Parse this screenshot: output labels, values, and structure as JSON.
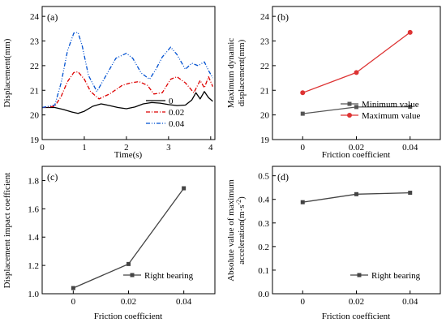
{
  "chart_data": [
    {
      "id": "a",
      "type": "line",
      "panel_label": "(a)",
      "xlabel": "Time(s)",
      "ylabel": "Displacement(mm)",
      "xlim": [
        0,
        4.1
      ],
      "ylim": [
        19,
        24.4
      ],
      "xticks": [
        0,
        1,
        2,
        3,
        4
      ],
      "yticks": [
        19,
        20,
        21,
        22,
        23,
        24
      ],
      "legend_position": "lower-right",
      "series": [
        {
          "name": "0",
          "color": "#000000",
          "dash": "solid",
          "x": [
            0,
            0.3,
            0.5,
            0.7,
            0.85,
            1.0,
            1.2,
            1.4,
            1.6,
            1.8,
            2.0,
            2.2,
            2.4,
            2.6,
            2.8,
            3.0,
            3.2,
            3.4,
            3.55,
            3.65,
            3.75,
            3.85,
            3.95,
            4.05
          ],
          "y": [
            20.3,
            20.3,
            20.22,
            20.12,
            20.06,
            20.15,
            20.35,
            20.45,
            20.38,
            20.3,
            20.25,
            20.32,
            20.45,
            20.5,
            20.48,
            20.42,
            20.38,
            20.4,
            20.6,
            20.9,
            20.65,
            20.95,
            20.7,
            20.55
          ]
        },
        {
          "name": "0.02",
          "color": "#dd0000",
          "dash": "dashdot",
          "x": [
            0,
            0.3,
            0.45,
            0.6,
            0.75,
            0.85,
            1.0,
            1.15,
            1.35,
            1.6,
            1.9,
            2.1,
            2.3,
            2.5,
            2.65,
            2.85,
            3.05,
            3.2,
            3.4,
            3.6,
            3.75,
            3.85,
            3.95,
            4.05
          ],
          "y": [
            20.3,
            20.35,
            20.75,
            21.35,
            21.72,
            21.75,
            21.45,
            20.95,
            20.65,
            20.85,
            21.2,
            21.3,
            21.35,
            21.2,
            20.85,
            20.9,
            21.45,
            21.55,
            21.3,
            20.9,
            21.4,
            21.1,
            21.55,
            21.15
          ]
        },
        {
          "name": "0.04",
          "color": "#0050d0",
          "dash": "dashdotdot",
          "x": [
            0,
            0.3,
            0.45,
            0.6,
            0.75,
            0.85,
            0.95,
            1.1,
            1.3,
            1.5,
            1.75,
            2.0,
            2.15,
            2.35,
            2.55,
            2.7,
            2.85,
            3.05,
            3.2,
            3.4,
            3.55,
            3.7,
            3.85,
            3.95,
            4.05
          ],
          "y": [
            20.3,
            20.4,
            21.3,
            22.6,
            23.32,
            23.35,
            22.8,
            21.6,
            20.95,
            21.55,
            22.3,
            22.5,
            22.3,
            21.7,
            21.45,
            21.85,
            22.35,
            22.75,
            22.45,
            21.85,
            22.1,
            22.0,
            22.15,
            21.8,
            21.5
          ]
        }
      ]
    },
    {
      "id": "b",
      "type": "line",
      "panel_label": "(b)",
      "xlabel": "Friction coefficient",
      "ylabel_lines": [
        "Maximum dynamic",
        "displacement(mm)"
      ],
      "categories": [
        "0",
        "0.02",
        "0.04"
      ],
      "ylim": [
        19,
        24.4
      ],
      "yticks": [
        19,
        20,
        21,
        22,
        23,
        24
      ],
      "legend_position": "lower-right",
      "series": [
        {
          "name": "Minimum value",
          "color": "#555555",
          "marker": "square",
          "values": [
            20.05,
            20.32,
            20.33
          ]
        },
        {
          "name": "Maximum value",
          "color": "#dd3333",
          "marker": "circle",
          "values": [
            20.9,
            21.72,
            23.35
          ]
        }
      ]
    },
    {
      "id": "c",
      "type": "line",
      "panel_label": "(c)",
      "xlabel": "Friction coefficient",
      "ylabel": "Displacement impact coefficient",
      "categories": [
        "0",
        "0.02",
        "0.04"
      ],
      "ylim": [
        1.0,
        1.9
      ],
      "yticks": [
        "1.0",
        "1.2",
        "1.4",
        "1.6",
        "1.8"
      ],
      "legend_position": "lower-right",
      "series": [
        {
          "name": "Right bearing",
          "color": "#444444",
          "marker": "square",
          "values": [
            1.04,
            1.21,
            1.745
          ]
        }
      ]
    },
    {
      "id": "d",
      "type": "line",
      "panel_label": "(d)",
      "xlabel": "Friction coefficient",
      "ylabel_lines": [
        "Absolute value of maximum",
        "acceleration(m·s",
        "-2",
        ")"
      ],
      "categories": [
        "0",
        "0.02",
        "0.04"
      ],
      "ylim": [
        0.0,
        0.54
      ],
      "yticks": [
        "0.0",
        "0.1",
        "0.2",
        "0.3",
        "0.4",
        "0.5"
      ],
      "legend_position": "lower-right",
      "series": [
        {
          "name": "Right bearing",
          "color": "#444444",
          "marker": "square",
          "values": [
            0.388,
            0.422,
            0.428
          ]
        }
      ]
    }
  ]
}
